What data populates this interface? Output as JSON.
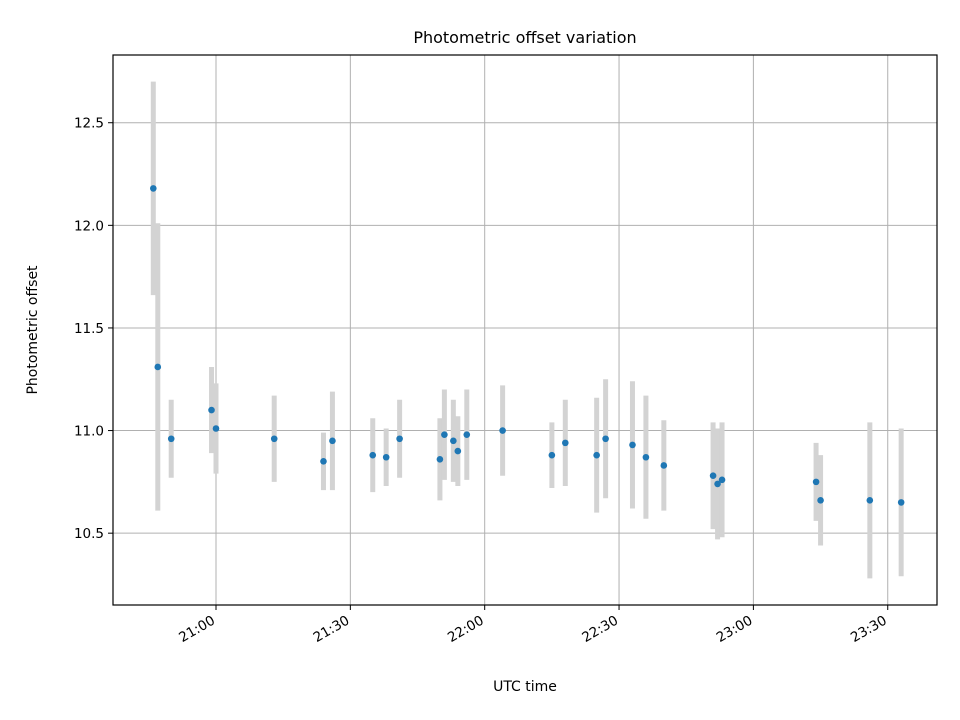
{
  "chart_data": {
    "type": "scatter",
    "title": "Photometric offset variation",
    "xlabel": "UTC time",
    "ylabel": "Photometric offset",
    "xlim": [
      "20:37",
      "23:41"
    ],
    "ylim": [
      10.15,
      12.83
    ],
    "x_ticks": [
      "21:00",
      "21:30",
      "22:00",
      "22:30",
      "23:00",
      "23:30"
    ],
    "y_ticks": [
      "10.5",
      "11.0",
      "11.5",
      "12.0",
      "12.5"
    ],
    "grid": true,
    "colors": {
      "point": "#1f77b4",
      "errorbar": "#d3d3d3"
    },
    "points": [
      {
        "x": "20:46",
        "y": 12.18,
        "yerr": 0.52
      },
      {
        "x": "20:47",
        "y": 11.31,
        "yerr": 0.7
      },
      {
        "x": "20:50",
        "y": 10.96,
        "yerr": 0.19
      },
      {
        "x": "20:59",
        "y": 11.1,
        "yerr": 0.21
      },
      {
        "x": "21:00",
        "y": 11.01,
        "yerr": 0.22
      },
      {
        "x": "21:13",
        "y": 10.96,
        "yerr": 0.21
      },
      {
        "x": "21:24",
        "y": 10.85,
        "yerr": 0.14
      },
      {
        "x": "21:26",
        "y": 10.95,
        "yerr": 0.24
      },
      {
        "x": "21:35",
        "y": 10.88,
        "yerr": 0.18
      },
      {
        "x": "21:38",
        "y": 10.87,
        "yerr": 0.14
      },
      {
        "x": "21:41",
        "y": 10.96,
        "yerr": 0.19
      },
      {
        "x": "21:50",
        "y": 10.86,
        "yerr": 0.2
      },
      {
        "x": "21:51",
        "y": 10.98,
        "yerr": 0.22
      },
      {
        "x": "21:53",
        "y": 10.95,
        "yerr": 0.2
      },
      {
        "x": "21:54",
        "y": 10.9,
        "yerr": 0.17
      },
      {
        "x": "21:56",
        "y": 10.98,
        "yerr": 0.22
      },
      {
        "x": "22:04",
        "y": 11.0,
        "yerr": 0.22
      },
      {
        "x": "22:15",
        "y": 10.88,
        "yerr": 0.16
      },
      {
        "x": "22:18",
        "y": 10.94,
        "yerr": 0.21
      },
      {
        "x": "22:25",
        "y": 10.88,
        "yerr": 0.28
      },
      {
        "x": "22:27",
        "y": 10.96,
        "yerr": 0.29
      },
      {
        "x": "22:33",
        "y": 10.93,
        "yerr": 0.31
      },
      {
        "x": "22:36",
        "y": 10.87,
        "yerr": 0.3
      },
      {
        "x": "22:40",
        "y": 10.83,
        "yerr": 0.22
      },
      {
        "x": "22:51",
        "y": 10.78,
        "yerr": 0.26
      },
      {
        "x": "22:52",
        "y": 10.74,
        "yerr": 0.27
      },
      {
        "x": "22:53",
        "y": 10.76,
        "yerr": 0.28
      },
      {
        "x": "23:14",
        "y": 10.75,
        "yerr": 0.19
      },
      {
        "x": "23:15",
        "y": 10.66,
        "yerr": 0.22
      },
      {
        "x": "23:26",
        "y": 10.66,
        "yerr": 0.38
      },
      {
        "x": "23:33",
        "y": 10.65,
        "yerr": 0.36
      }
    ]
  }
}
